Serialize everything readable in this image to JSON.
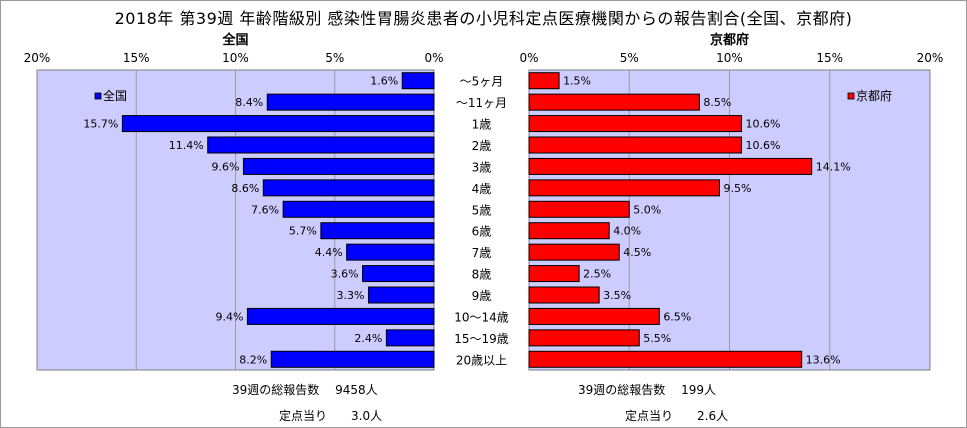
{
  "chart_data": {
    "type": "bar",
    "title": "2018年 第39週 年齢階級別 感染性胃腸炎患者の小児科定点医療機関からの報告割合(全国、京都府)",
    "categories": [
      "～5ヶ月",
      "～11ヶ月",
      "1歳",
      "2歳",
      "3歳",
      "4歳",
      "5歳",
      "6歳",
      "7歳",
      "8歳",
      "9歳",
      "10～14歳",
      "15～19歳",
      "20歳以上"
    ],
    "xlim": [
      0,
      20
    ],
    "xticks": [
      "0%",
      "5%",
      "10%",
      "15%",
      "20%"
    ],
    "grid": true,
    "series": [
      {
        "name": "全国",
        "panel_title": "全国",
        "color": "#0000ff",
        "orientation": "left",
        "legend": "top-left",
        "values": [
          1.6,
          8.4,
          15.7,
          11.4,
          9.6,
          8.6,
          7.6,
          5.7,
          4.4,
          3.6,
          3.3,
          9.4,
          2.4,
          8.2
        ],
        "labels": [
          "1.6%",
          "8.4%",
          "15.7%",
          "11.4%",
          "9.6%",
          "8.6%",
          "7.6%",
          "5.7%",
          "4.4%",
          "3.6%",
          "3.3%",
          "9.4%",
          "2.4%",
          "8.2%"
        ]
      },
      {
        "name": "京都府",
        "panel_title": "京都府",
        "color": "#ff0000",
        "orientation": "right",
        "legend": "top-right",
        "values": [
          1.5,
          8.5,
          10.6,
          10.6,
          14.1,
          9.5,
          5.0,
          4.0,
          4.5,
          2.5,
          3.5,
          6.5,
          5.5,
          13.6
        ],
        "labels": [
          "1.5%",
          "8.5%",
          "10.6%",
          "10.6%",
          "14.1%",
          "9.5%",
          "5.0%",
          "4.0%",
          "4.5%",
          "2.5%",
          "3.5%",
          "6.5%",
          "5.5%",
          "13.6%"
        ]
      }
    ]
  },
  "summary": {
    "national": {
      "total": "39週の総報告数　 9458人",
      "per_site": "定点当り　　3.0人"
    },
    "kyoto": {
      "total": "39週の総報告数　 199人",
      "per_site": "定点当り　　2.6人"
    }
  }
}
